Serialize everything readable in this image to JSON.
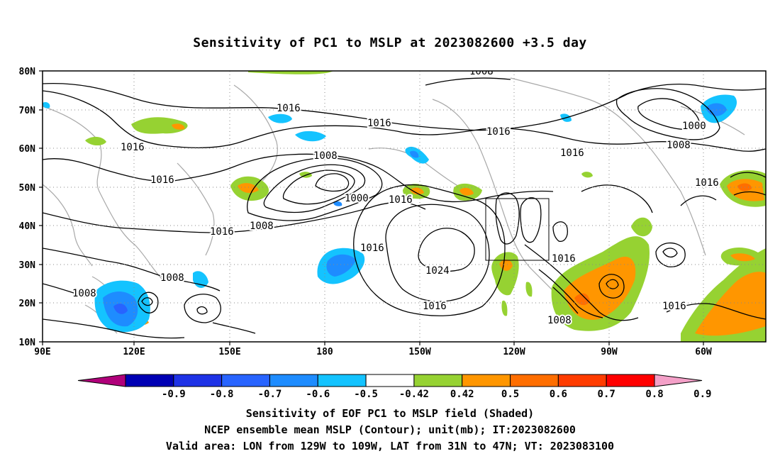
{
  "title": "Sensitivity of PC1 to MSLP at 2023082600 +3.5 day",
  "axes": {
    "lat_labels": [
      "80N",
      "70N",
      "60N",
      "50N",
      "40N",
      "30N",
      "20N",
      "10N"
    ],
    "lon_labels": [
      "90E",
      "120E",
      "150E",
      "180",
      "150W",
      "120W",
      "90W",
      "60W"
    ]
  },
  "contour_labels": [
    "1008",
    "1016",
    "1016",
    "1016",
    "1008",
    "1016",
    "1016",
    "1000",
    "1016",
    "1008",
    "1016",
    "1024",
    "1016",
    "1016",
    "1008",
    "1008",
    "1016",
    "1016",
    "1008",
    "1000",
    "1008",
    "1016",
    "1016"
  ],
  "colorbar": {
    "tick_labels": [
      "-0.9",
      "-0.8",
      "-0.7",
      "-0.6",
      "-0.5",
      "-0.42",
      "0.42",
      "0.5",
      "0.6",
      "0.7",
      "0.8",
      "0.9"
    ],
    "colors": [
      "#b0007a",
      "#0000b4",
      "#1e32e6",
      "#2864ff",
      "#1e8cff",
      "#14c3ff",
      "#ffffff",
      "#96d232",
      "#ff9600",
      "#ff6e00",
      "#ff3c00",
      "#ff0000",
      "#f4a0c8"
    ]
  },
  "captions": {
    "line1": "Sensitivity of EOF PC1 to MSLP field (Shaded)",
    "line2": "NCEP ensemble mean MSLP (Contour); unit(mb); IT:2023082600",
    "line3": "Valid area: LON from 129W to 109W, LAT from 31N to 47N; VT: 2023083100"
  }
}
